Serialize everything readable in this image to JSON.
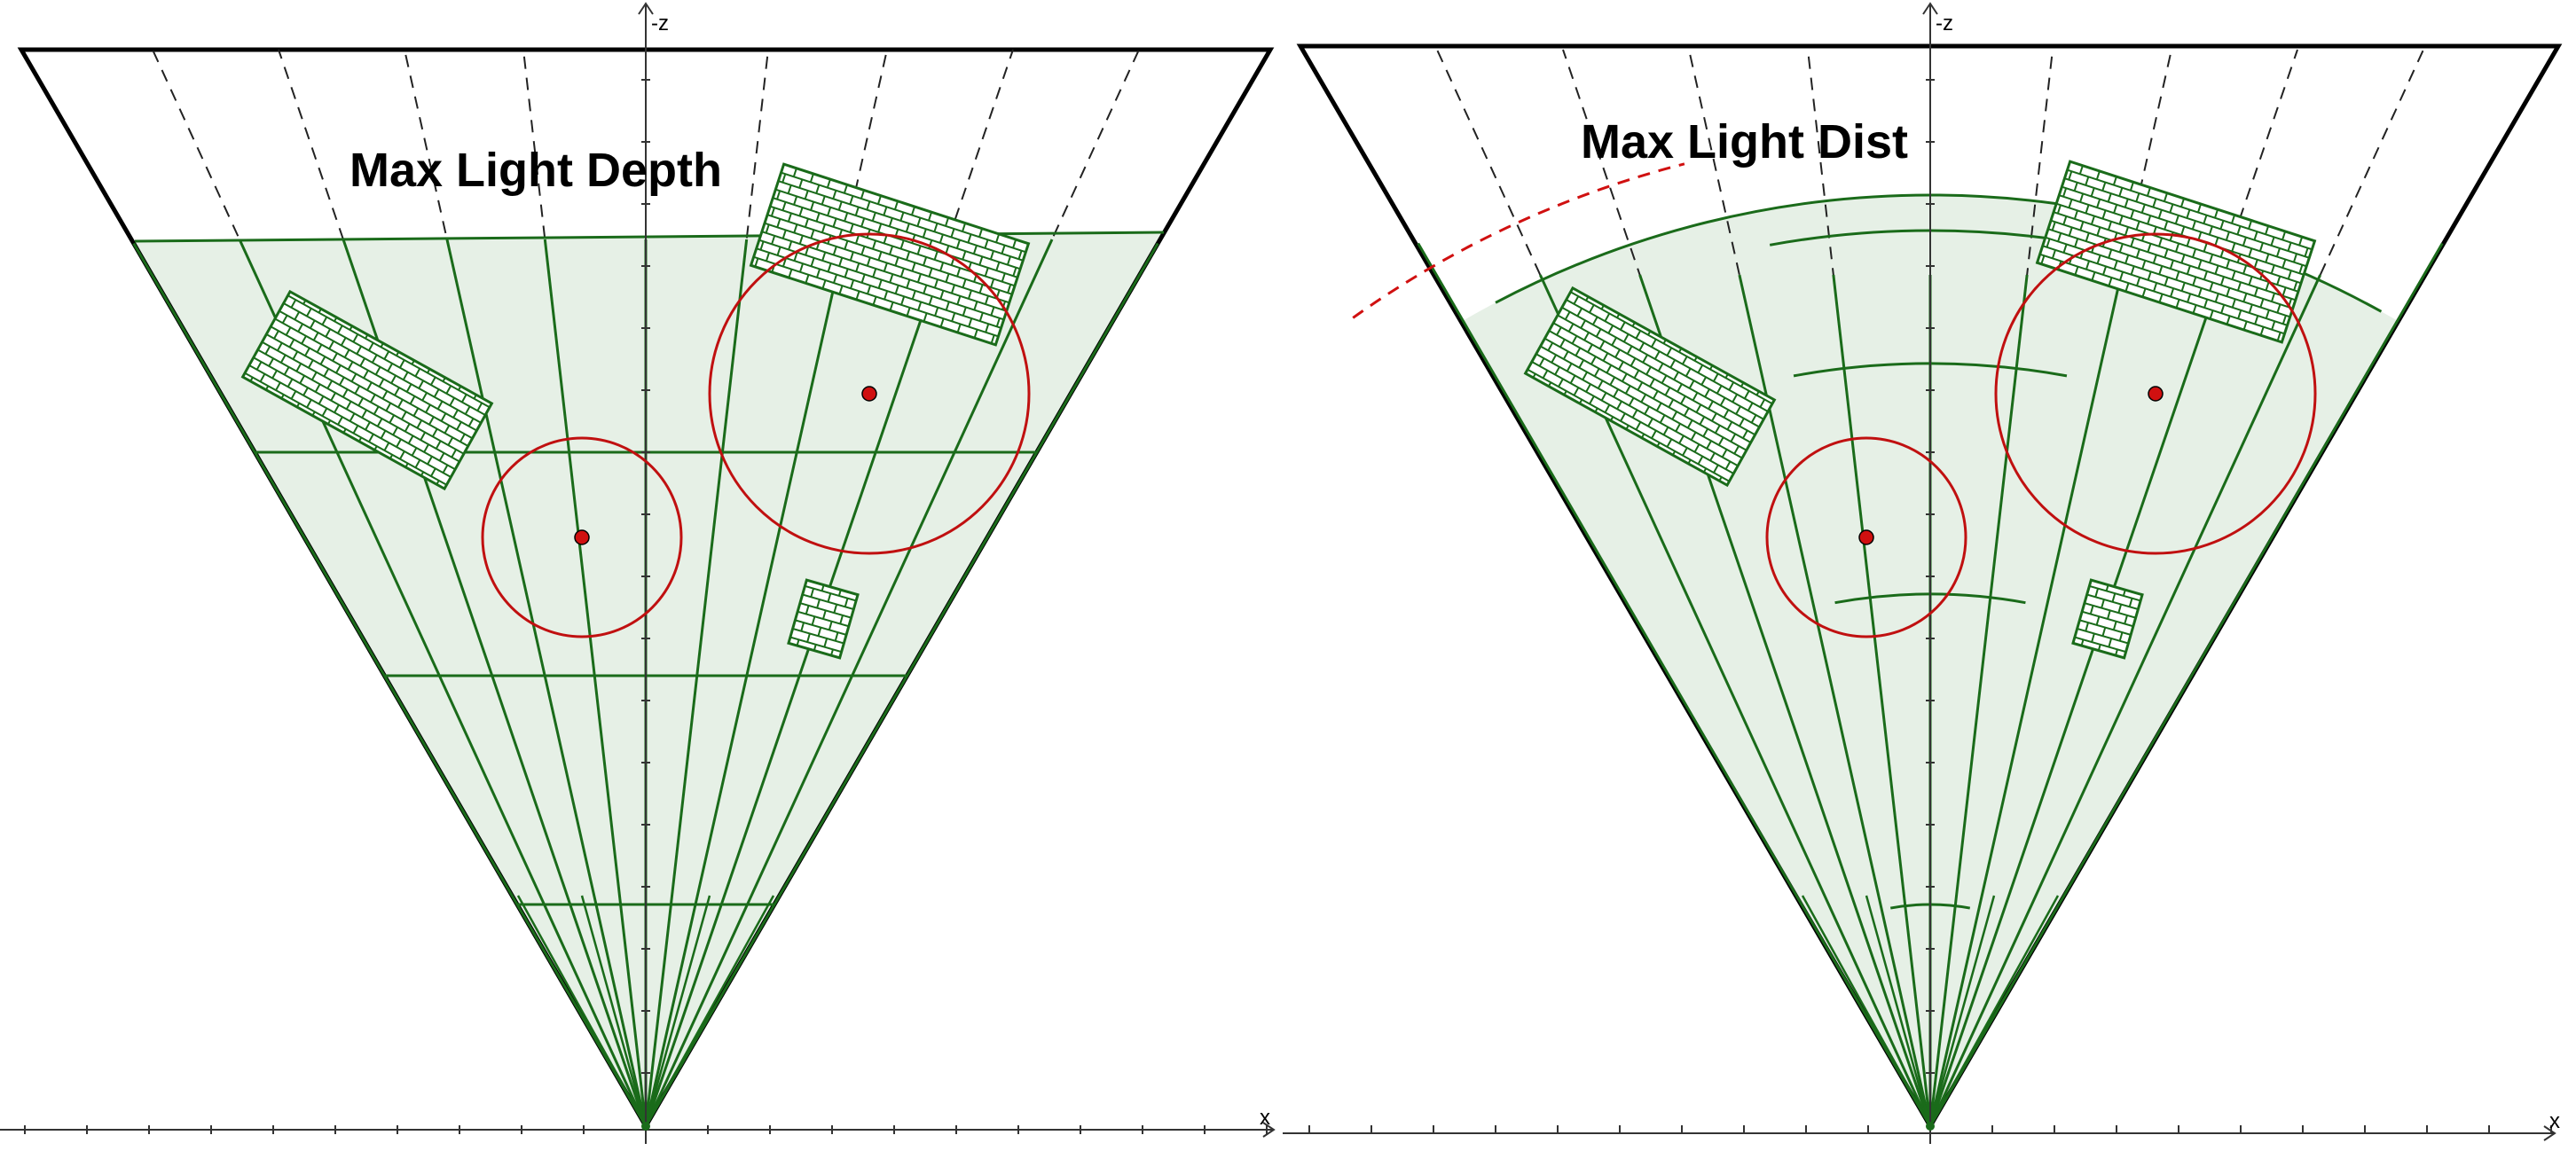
{
  "colors": {
    "frustum_outline": "#000000",
    "cluster_fill": "#e6f0e6",
    "cluster_line": "#1a6b1a",
    "light_circle": "#c01010",
    "light_center": "#d01010",
    "dashed_ray": "#222222",
    "culled_arc": "#d01010",
    "wall": "#1a6b1a"
  },
  "icons": {
    "brick_wall": "brick-wall-icon",
    "light_point": "light-point-icon"
  },
  "panels": [
    {
      "id": "left",
      "title": "Max Light Depth",
      "axis_vertical": "-z",
      "axis_horizontal": "x",
      "slicing": "depth-planes"
    },
    {
      "id": "right",
      "title": "Max Light Dist",
      "axis_vertical": "-z",
      "axis_horizontal": "x",
      "slicing": "distance-arcs"
    }
  ]
}
